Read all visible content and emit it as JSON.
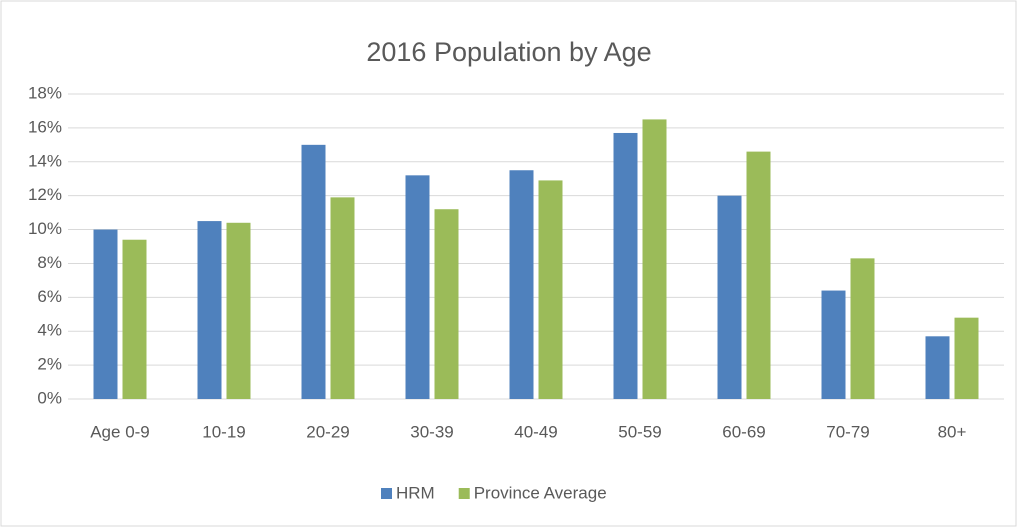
{
  "chart_data": {
    "type": "bar",
    "title": "2016 Population by Age",
    "categories": [
      "Age 0-9",
      "10-19",
      "20-29",
      "30-39",
      "40-49",
      "50-59",
      "60-69",
      "70-79",
      "80+"
    ],
    "series": [
      {
        "name": "HRM",
        "color": "#4f81bd",
        "values": [
          10.0,
          10.5,
          15.0,
          13.2,
          13.5,
          15.7,
          12.0,
          6.4,
          3.7
        ]
      },
      {
        "name": "Province Average",
        "color": "#9bbb59",
        "values": [
          9.4,
          10.4,
          11.9,
          11.2,
          12.9,
          16.5,
          14.6,
          8.3,
          4.8
        ]
      }
    ],
    "ylim": [
      0,
      18
    ],
    "yticks": [
      {
        "value": 0,
        "label": "0%"
      },
      {
        "value": 2,
        "label": "2%"
      },
      {
        "value": 4,
        "label": "4%"
      },
      {
        "value": 6,
        "label": "6%"
      },
      {
        "value": 8,
        "label": "8%"
      },
      {
        "value": 10,
        "label": "10%"
      },
      {
        "value": 12,
        "label": "12%"
      },
      {
        "value": 14,
        "label": "14%"
      },
      {
        "value": 16,
        "label": "16%"
      },
      {
        "value": 18,
        "label": "18%"
      }
    ],
    "grid": true,
    "legend": "bottom"
  }
}
